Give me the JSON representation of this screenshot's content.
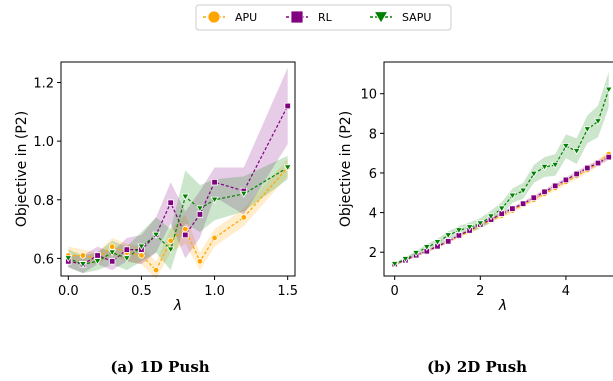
{
  "legend": {
    "entries": [
      {
        "label": "APU",
        "color": "#FFA500",
        "marker": "circle"
      },
      {
        "label": "RL",
        "color": "#800080",
        "marker": "square"
      },
      {
        "label": "SAPU",
        "color": "#008000",
        "marker": "triangle"
      }
    ],
    "placement": "top-center"
  },
  "chart_data": [
    {
      "type": "line",
      "caption": "(a) 1D Push",
      "xlabel": "λ",
      "ylabel": "Objective in (P2)",
      "xlim": [
        -0.05,
        1.55
      ],
      "ylim": [
        0.54,
        1.27
      ],
      "xticks": [
        "0.0",
        "0.5",
        "1.0",
        "1.5"
      ],
      "xtick_values": [
        0,
        0.5,
        1.0,
        1.5
      ],
      "yticks": [
        "0.6",
        "0.8",
        "1.0",
        "1.2"
      ],
      "ytick_values": [
        0.6,
        0.8,
        1.0,
        1.2
      ],
      "x": [
        0.0,
        0.1,
        0.2,
        0.3,
        0.4,
        0.5,
        0.6,
        0.7,
        0.8,
        0.9,
        1.0,
        1.2,
        1.5
      ],
      "series": [
        {
          "name": "APU",
          "color": "#FFA500",
          "marker": "circle",
          "values": [
            0.61,
            0.61,
            0.6,
            0.64,
            0.62,
            0.61,
            0.56,
            0.66,
            0.7,
            0.59,
            0.67,
            0.74,
            0.91
          ],
          "band": [
            0.03,
            0.02,
            0.02,
            0.03,
            0.03,
            0.03,
            0.03,
            0.04,
            0.05,
            0.03,
            0.03,
            0.03,
            0.03
          ]
        },
        {
          "name": "RL",
          "color": "#800080",
          "marker": "square",
          "values": [
            0.59,
            0.58,
            0.61,
            0.59,
            0.63,
            0.63,
            0.68,
            0.79,
            0.68,
            0.75,
            0.86,
            0.83,
            1.12
          ],
          "band": [
            0.02,
            0.03,
            0.03,
            0.03,
            0.04,
            0.05,
            0.06,
            0.07,
            0.08,
            0.08,
            0.05,
            0.08,
            0.13
          ]
        },
        {
          "name": "SAPU",
          "color": "#008000",
          "marker": "triangle",
          "values": [
            0.6,
            0.58,
            0.59,
            0.62,
            0.6,
            0.64,
            0.68,
            0.63,
            0.81,
            0.77,
            0.8,
            0.82,
            0.91
          ],
          "band": [
            0.03,
            0.03,
            0.03,
            0.04,
            0.04,
            0.05,
            0.06,
            0.07,
            0.09,
            0.08,
            0.07,
            0.06,
            0.04
          ]
        }
      ]
    },
    {
      "type": "line",
      "caption": "(b) 2D Push",
      "xlabel": "λ",
      "ylabel": "Objective in (P2)",
      "xlim": [
        -0.25,
        5.1
      ],
      "ylim": [
        0.8,
        11.6
      ],
      "xticks": [
        "0",
        "2",
        "4"
      ],
      "xtick_values": [
        0,
        2,
        4
      ],
      "yticks": [
        "2",
        "4",
        "6",
        "8",
        "10"
      ],
      "ytick_values": [
        2,
        4,
        6,
        8,
        10
      ],
      "x": [
        0.0,
        0.25,
        0.5,
        0.75,
        1.0,
        1.25,
        1.5,
        1.75,
        2.0,
        2.25,
        2.5,
        2.75,
        3.0,
        3.25,
        3.5,
        3.75,
        4.0,
        4.25,
        4.5,
        4.75,
        5.0
      ],
      "series": [
        {
          "name": "APU",
          "color": "#FFA500",
          "marker": "circle",
          "values": [
            1.4,
            1.6,
            1.85,
            2.05,
            2.3,
            2.55,
            2.8,
            3.05,
            3.35,
            3.6,
            3.85,
            4.1,
            4.4,
            4.65,
            4.95,
            5.25,
            5.55,
            5.85,
            6.15,
            6.5,
            6.95
          ],
          "band": [
            0.08,
            0.08,
            0.08,
            0.08,
            0.1,
            0.1,
            0.1,
            0.1,
            0.12,
            0.12,
            0.12,
            0.12,
            0.14,
            0.14,
            0.14,
            0.15,
            0.15,
            0.16,
            0.16,
            0.18,
            0.2
          ]
        },
        {
          "name": "RL",
          "color": "#800080",
          "marker": "square",
          "values": [
            1.4,
            1.6,
            1.85,
            2.05,
            2.3,
            2.55,
            2.85,
            3.1,
            3.4,
            3.65,
            3.95,
            4.2,
            4.45,
            4.75,
            5.05,
            5.35,
            5.65,
            5.95,
            6.25,
            6.5,
            6.8
          ],
          "band": [
            0.06,
            0.06,
            0.06,
            0.06,
            0.08,
            0.08,
            0.08,
            0.08,
            0.1,
            0.1,
            0.1,
            0.1,
            0.1,
            0.12,
            0.12,
            0.12,
            0.12,
            0.14,
            0.14,
            0.14,
            0.15
          ]
        },
        {
          "name": "SAPU",
          "color": "#008000",
          "marker": "triangle",
          "values": [
            1.4,
            1.65,
            1.95,
            2.25,
            2.5,
            2.85,
            3.1,
            3.25,
            3.45,
            3.8,
            4.2,
            4.85,
            5.1,
            5.95,
            6.3,
            6.4,
            7.35,
            7.1,
            8.2,
            8.6,
            10.2
          ],
          "band": [
            0.08,
            0.1,
            0.12,
            0.15,
            0.18,
            0.2,
            0.22,
            0.25,
            0.28,
            0.3,
            0.33,
            0.36,
            0.4,
            0.45,
            0.5,
            0.55,
            0.6,
            0.65,
            0.7,
            0.8,
            0.9
          ]
        }
      ]
    }
  ]
}
